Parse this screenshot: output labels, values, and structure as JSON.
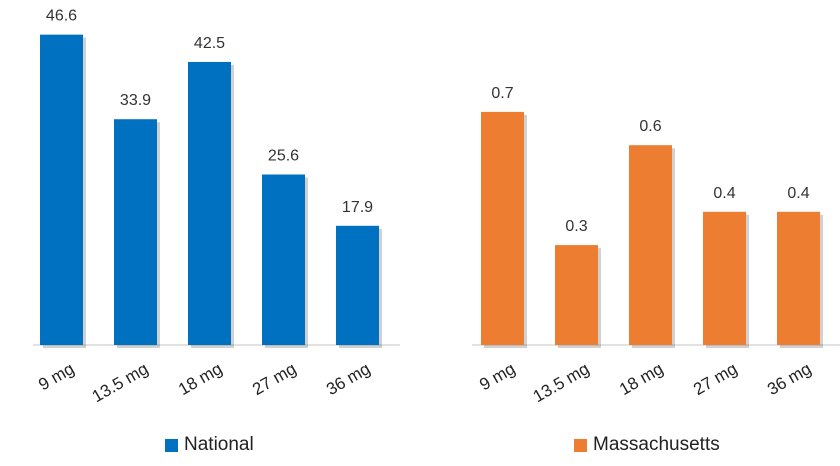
{
  "chart_data": [
    {
      "type": "bar",
      "categories": [
        "9 mg",
        "13.5 mg",
        "18 mg",
        "27 mg",
        "36 mg"
      ],
      "series": [
        {
          "name": "National",
          "values": [
            46.6,
            33.9,
            42.5,
            25.6,
            17.9
          ],
          "color": "#0070C0"
        }
      ],
      "ylim": [
        0,
        50
      ],
      "grid": false,
      "legend": "bottom"
    },
    {
      "type": "bar",
      "categories": [
        "9 mg",
        "13.5 mg",
        "18 mg",
        "27 mg",
        "36 mg"
      ],
      "series": [
        {
          "name": "Massachusetts",
          "values": [
            0.7,
            0.3,
            0.6,
            0.4,
            0.4
          ],
          "color": "#ED7D31"
        }
      ],
      "ylim": [
        0,
        1.0
      ],
      "grid": false,
      "legend": "bottom"
    }
  ]
}
